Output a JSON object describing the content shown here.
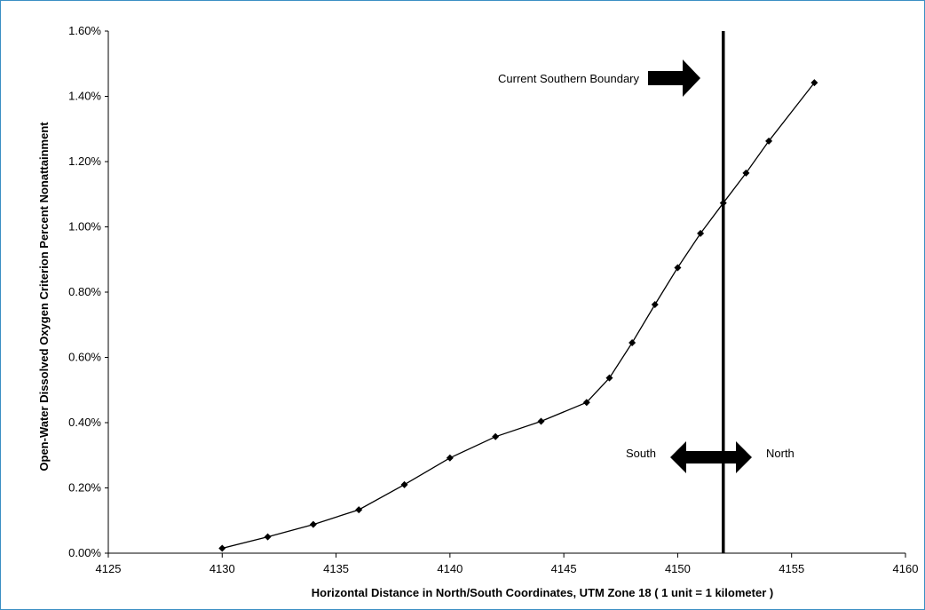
{
  "chart_data": {
    "type": "line",
    "title": "",
    "xlabel": "Horizontal Distance in North/South Coordinates, UTM Zone 18  ( 1 unit = 1 kilometer )",
    "ylabel": "Open-Water Dissolved Oxygen Criterion Percent Nonattainment",
    "xlim": [
      4125,
      4160
    ],
    "ylim": [
      0,
      0.016
    ],
    "x_ticks": [
      4125,
      4130,
      4135,
      4140,
      4145,
      4150,
      4155,
      4160
    ],
    "x_tick_labels": [
      "4125",
      "4130",
      "4135",
      "4140",
      "4145",
      "4150",
      "4155",
      "4160"
    ],
    "y_ticks": [
      0,
      0.002,
      0.004,
      0.006,
      0.008,
      0.01,
      0.012,
      0.014,
      0.016
    ],
    "y_tick_labels": [
      "0.00%",
      "0.20%",
      "0.40%",
      "0.60%",
      "0.80%",
      "1.00%",
      "1.20%",
      "1.40%",
      "1.60%"
    ],
    "grid": false,
    "legend": "none",
    "series": [
      {
        "marker": "diamond",
        "color": "#000000",
        "x": [
          4130,
          4132,
          4134,
          4136,
          4138,
          4140,
          4142,
          4144,
          4146,
          4147,
          4148,
          4149,
          4150,
          4151,
          4152,
          4153,
          4154,
          4156
        ],
        "y": [
          0.00015,
          0.0005,
          0.00088,
          0.00133,
          0.0021,
          0.00292,
          0.00357,
          0.00404,
          0.00462,
          0.00537,
          0.00645,
          0.00762,
          0.00875,
          0.0098,
          0.01073,
          0.01165,
          0.01263,
          0.01442
        ]
      }
    ],
    "boundary_x": 4152,
    "annotations": {
      "boundary_label": "Current Southern Boundary",
      "south_label": "South",
      "north_label": "North"
    }
  }
}
